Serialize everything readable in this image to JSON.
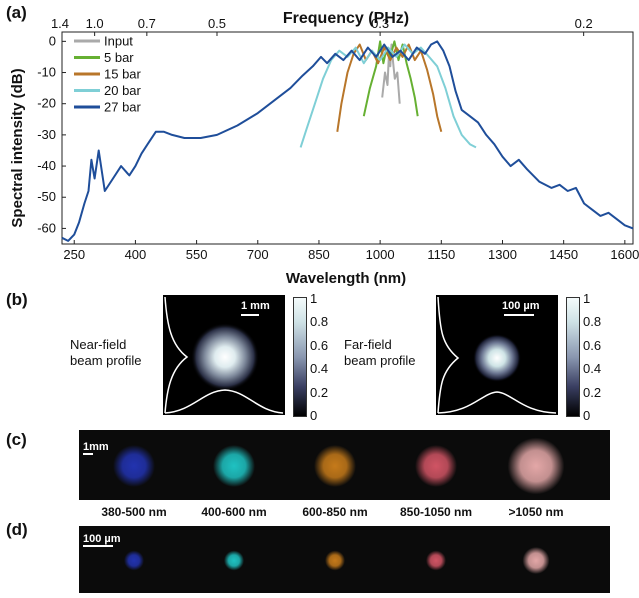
{
  "panels": {
    "a": "(a)",
    "b": "(b)",
    "c": "(c)",
    "d": "(d)"
  },
  "chart_data": {
    "type": "line",
    "title": "",
    "xlabel": "Wavelength (nm)",
    "ylabel": "Spectral intensity (dB)",
    "top_xlabel": "Frequency (PHz)",
    "xlim": [
      220,
      1620
    ],
    "ylim": [
      -65,
      3
    ],
    "x_ticks": [
      250,
      400,
      550,
      700,
      850,
      1000,
      1150,
      1300,
      1450,
      1600
    ],
    "y_ticks": [
      0,
      -10,
      -20,
      -30,
      -40,
      -50,
      -60
    ],
    "top_ticks": [
      {
        "label": "1.4",
        "wavelength": 214
      },
      {
        "label": "1.0",
        "wavelength": 300
      },
      {
        "label": "0.7",
        "wavelength": 428
      },
      {
        "label": "0.5",
        "wavelength": 600
      },
      {
        "label": "0.3",
        "wavelength": 1000
      },
      {
        "label": "0.2",
        "wavelength": 1499
      }
    ],
    "legend": "top-left",
    "grid": false,
    "series": [
      {
        "name": "Input",
        "color": "#aaaaaa",
        "x": [
          1005,
          1012,
          1018,
          1022,
          1025,
          1028,
          1032,
          1036,
          1042,
          1048
        ],
        "y": [
          -18,
          -10,
          -14,
          -3,
          -8,
          -1,
          -7,
          -12,
          -10,
          -20
        ]
      },
      {
        "name": "5  bar",
        "color": "#66b032",
        "x": [
          960,
          975,
          990,
          1000,
          1008,
          1016,
          1025,
          1035,
          1045,
          1055,
          1065,
          1075,
          1085,
          1092
        ],
        "y": [
          -24,
          -15,
          -8,
          0,
          -7,
          -2,
          -5,
          0,
          -6,
          -1,
          -7,
          -12,
          -18,
          -24
        ]
      },
      {
        "name": "15 bar",
        "color": "#b8762a",
        "x": [
          895,
          905,
          920,
          935,
          950,
          965,
          980,
          995,
          1010,
          1025,
          1040,
          1055,
          1070,
          1085,
          1100,
          1115,
          1130,
          1140,
          1150
        ],
        "y": [
          -29,
          -20,
          -10,
          -4,
          -1,
          -6,
          -3,
          -7,
          -2,
          -6,
          -2,
          -5,
          -1,
          -6,
          -3,
          -9,
          -17,
          -24,
          -29
        ]
      },
      {
        "name": "20 bar",
        "color": "#7fcfd6",
        "x": [
          805,
          820,
          840,
          860,
          880,
          900,
          920,
          940,
          960,
          980,
          1000,
          1020,
          1040,
          1060,
          1080,
          1100,
          1120,
          1140,
          1160,
          1180,
          1200,
          1220,
          1235
        ],
        "y": [
          -34,
          -28,
          -20,
          -12,
          -6,
          -3,
          -5,
          -2,
          -7,
          -3,
          -6,
          -2,
          -5,
          -1,
          -4,
          -2,
          -5,
          -8,
          -15,
          -24,
          -30,
          -33,
          -34
        ]
      },
      {
        "name": "27 bar",
        "color": "#1f4e9a",
        "x": [
          220,
          235,
          250,
          262,
          275,
          285,
          292,
          300,
          310,
          325,
          345,
          365,
          385,
          400,
          415,
          430,
          450,
          470,
          490,
          520,
          560,
          600,
          650,
          700,
          740,
          780,
          810,
          835,
          855,
          870,
          890,
          910,
          930,
          950,
          970,
          990,
          1010,
          1030,
          1050,
          1070,
          1090,
          1110,
          1125,
          1140,
          1155,
          1170,
          1185,
          1200,
          1220,
          1240,
          1260,
          1280,
          1300,
          1320,
          1340,
          1360,
          1390,
          1420,
          1440,
          1460,
          1480,
          1500,
          1520,
          1540,
          1560,
          1580,
          1600,
          1620
        ],
        "y": [
          -63,
          -64,
          -62,
          -58,
          -52,
          -48,
          -38,
          -44,
          -35,
          -48,
          -44,
          -40,
          -43,
          -40,
          -36,
          -33,
          -29,
          -29,
          -30,
          -31,
          -31,
          -30,
          -27,
          -23,
          -19,
          -15,
          -11,
          -8,
          -5,
          -7,
          -4,
          -6,
          -3,
          -6,
          -2,
          -5,
          -1,
          -5,
          -3,
          -6,
          -2,
          -4,
          -1,
          0,
          -3,
          -8,
          -16,
          -22,
          -24,
          -26,
          -30,
          -33,
          -37,
          -40,
          -38,
          -41,
          -45,
          -47,
          -46,
          -48,
          -47,
          -52,
          -54,
          -56,
          -55,
          -57,
          -59,
          -60
        ]
      }
    ]
  },
  "beam_profiles": [
    {
      "caption": "Near-field\nbeam profile",
      "scale_bar": "1 mm"
    },
    {
      "caption": "Far-field\nbeam profile",
      "scale_bar": "100 µm"
    }
  ],
  "colorbar_ticks": [
    "1",
    "0.8",
    "0.6",
    "0.4",
    "0.2",
    "0"
  ],
  "strip_c": {
    "scale_bar": "1mm",
    "spots": [
      {
        "label": "380-500 nm",
        "color": "#2233b0"
      },
      {
        "label": "400-600 nm",
        "color": "#1fc2c2"
      },
      {
        "label": "600-850 nm",
        "color": "#c57a1a"
      },
      {
        "label": "850-1050 nm",
        "color": "#d05464"
      },
      {
        "label": ">1050 nm",
        "color": "#e3a7a7"
      }
    ]
  },
  "strip_d": {
    "scale_bar": "100 µm",
    "spots": [
      {
        "color": "#2233b0"
      },
      {
        "color": "#1fc2c2"
      },
      {
        "color": "#c57a1a"
      },
      {
        "color": "#d05464"
      },
      {
        "color": "#e3a7a7"
      }
    ]
  }
}
